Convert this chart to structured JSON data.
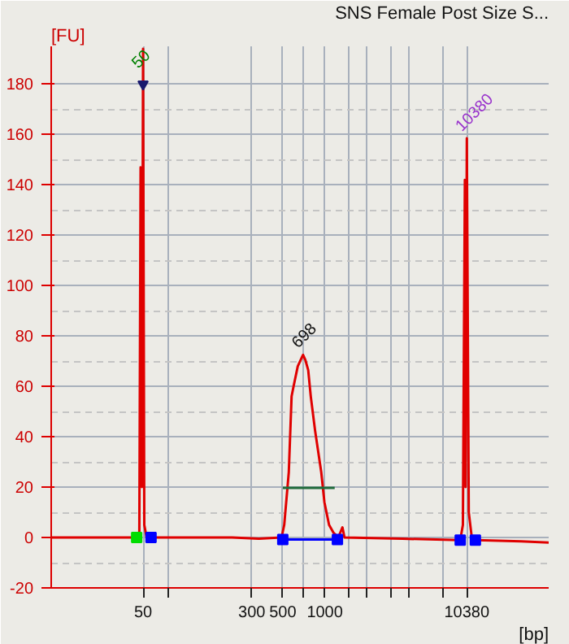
{
  "chart_data": {
    "type": "line",
    "title": "SNS Female Post Size S...",
    "xlabel": "[bp]",
    "ylabel": "[FU]",
    "log": "x",
    "xlim": [
      11,
      40000
    ],
    "ylim": [
      -20,
      195
    ],
    "xticks": [
      50,
      {
        "value": 75,
        "label": null
      },
      300,
      500,
      {
        "value": 700,
        "label": null
      },
      1000,
      {
        "value": 1500,
        "label": null
      },
      {
        "value": 2000,
        "label": null
      },
      {
        "value": 3000,
        "label": null
      },
      {
        "value": 4000,
        "label": null
      },
      {
        "value": 7000,
        "label": null
      },
      10380
    ],
    "yticks": [
      -20,
      0,
      20,
      40,
      60,
      80,
      100,
      120,
      140,
      160,
      180
    ],
    "grid": true,
    "annotations": [
      {
        "text": "50",
        "x": 50,
        "y": 184
      },
      {
        "text": "698",
        "x": 698,
        "y": 73
      },
      {
        "text": "10380",
        "x": 10380,
        "y": 159
      }
    ],
    "series": [
      {
        "color": "#e00000",
        "line_style": "solid",
        "x": [
          11,
          44,
          47,
          48,
          49,
          50,
          51,
          53,
          57,
          217,
          337,
          490,
          512,
          552,
          578,
          597,
          640,
          698,
          725,
          760,
          793,
          851,
          942,
          993,
          1072,
          1149,
          1247,
          1336,
          1383,
          3600,
          9310,
          9730,
          10050,
          10170,
          10380,
          10720,
          11320,
          12220,
          25400,
          40000
        ],
        "values": [
          0,
          0,
          2,
          147,
          20,
          194,
          5,
          0,
          0,
          0,
          -0.5,
          0,
          5,
          26,
          56,
          60,
          68,
          72.5,
          70.5,
          66.5,
          56,
          42.5,
          26,
          14,
          5,
          2,
          0,
          4,
          0,
          -0.5,
          -1,
          5,
          142,
          20,
          158.5,
          10,
          -1,
          -1,
          -1.5,
          -2
        ]
      },
      {
        "type": "line",
        "color": "#1f6b3a",
        "line_style": "solid",
        "x": [
          500,
          1176
        ],
        "values": [
          19.7,
          19.7
        ]
      },
      {
        "type": "line",
        "color": "#0000ff",
        "line_style": "solid",
        "x": [
          500,
          1230
        ],
        "values": [
          -0.8,
          -0.8
        ]
      },
      {
        "type": "scatter",
        "marker": "square",
        "colors": [
          "#00dd00",
          "#0000ff",
          "#0000ff",
          "#0000ff",
          "#0000ff",
          "#0000ff"
        ],
        "x": [
          45,
          57,
          500,
          1230,
          9310,
          11950
        ],
        "values": [
          0,
          0,
          -0.8,
          -0.8,
          -1,
          -1
        ]
      },
      {
        "type": "scatter",
        "marker": "triangle",
        "color": "#1a1a6e",
        "x": [
          50
        ],
        "values": [
          180
        ]
      }
    ]
  }
}
